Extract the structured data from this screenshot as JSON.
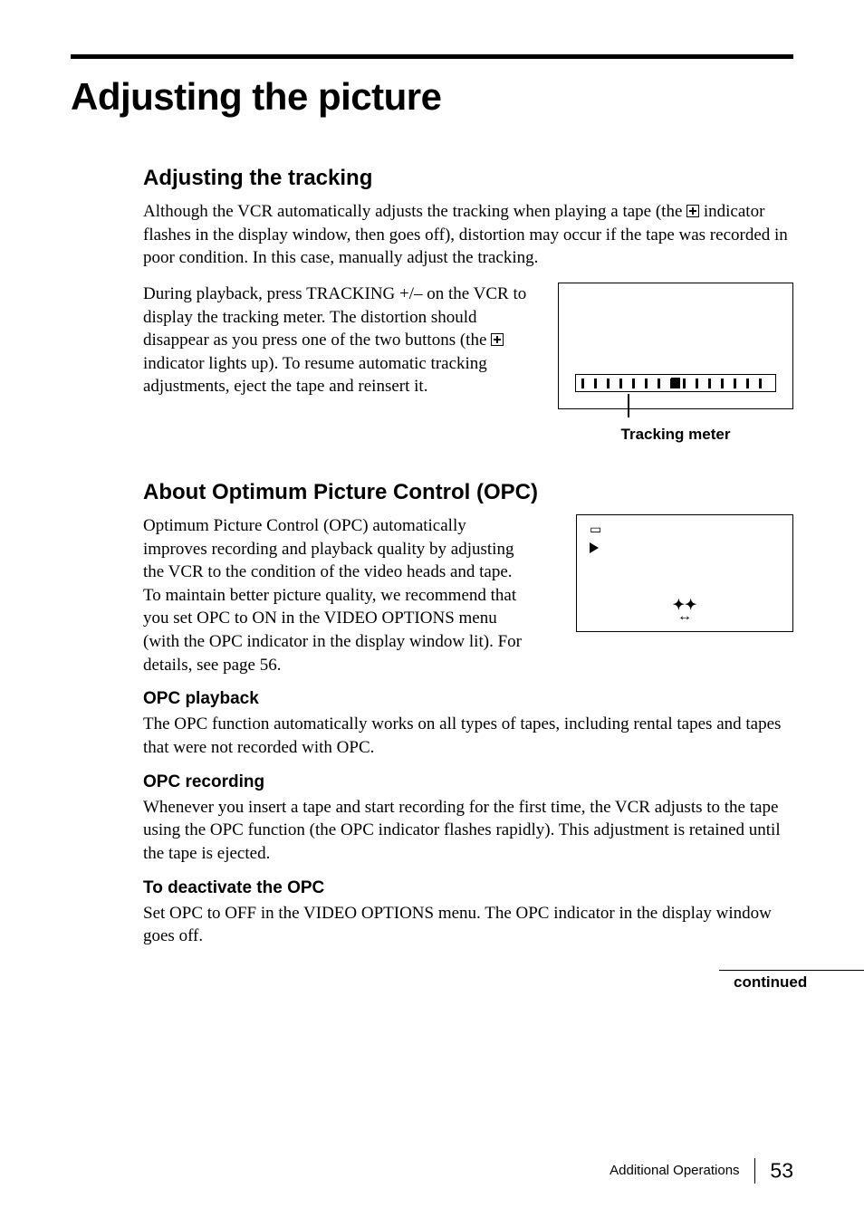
{
  "page": {
    "title": "Adjusting the picture",
    "footer_section": "Additional Operations",
    "page_number": "53",
    "continued": "continued"
  },
  "tracking": {
    "heading": "Adjusting the tracking",
    "para1_a": "Although the VCR automatically adjusts the tracking when playing a tape (the ",
    "para1_b": " indicator flashes in the display window, then goes off), distortion may occur if the tape was recorded in poor condition.  In this case, manually adjust the tracking.",
    "para2_a": "During playback, press TRACKING +/– on the VCR to display the tracking meter.  The distortion should disappear as you press one of the two buttons (the ",
    "para2_b": " indicator lights up).  To resume automatic tracking adjustments, eject the tape and reinsert it.",
    "meter_label": "Tracking meter"
  },
  "opc": {
    "heading": "About Optimum Picture Control (OPC)",
    "intro": "Optimum Picture Control (OPC) automatically improves recording and playback quality by adjusting the VCR to the condition of the video heads and tape.  To maintain better picture quality, we recommend that you set OPC to ON in the VIDEO OPTIONS menu (with the OPC indicator in the display window lit).  For details, see page 56.",
    "playback_h": "OPC playback",
    "playback_p": "The OPC function automatically works on all types of tapes, including rental tapes and tapes that were not recorded with OPC.",
    "recording_h": "OPC recording",
    "recording_p": "Whenever you insert a tape and start recording for the first time, the VCR adjusts to the tape using the OPC function (the OPC indicator flashes rapidly).  This adjustment is retained until the tape is ejected.",
    "deactivate_h": "To deactivate the OPC",
    "deactivate_p": "Set OPC to OFF in the VIDEO OPTIONS menu.  The OPC indicator in the display window goes off."
  }
}
